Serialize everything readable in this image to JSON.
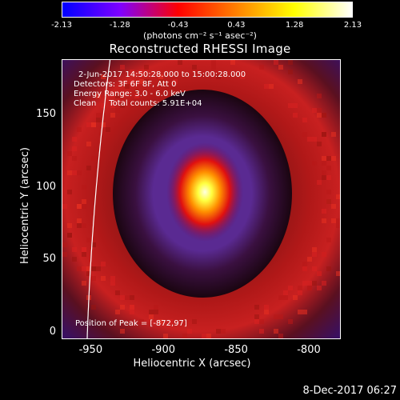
{
  "colorbar": {
    "ticks": [
      "-2.13",
      "-1.28",
      "-0.43",
      "0.43",
      "1.28",
      "2.13"
    ],
    "unit_label": "(photons cm⁻² s⁻¹ asec⁻²)",
    "colors": [
      "#0000ff",
      "#7f00ff",
      "#ff0000",
      "#ff8000",
      "#ffff00",
      "#ffffff"
    ]
  },
  "chart_data": {
    "type": "heatmap",
    "title": "Reconstructed RHESSI Image",
    "xlabel": "Heliocentric X (arcsec)",
    "ylabel": "Heliocentric Y (arcsec)",
    "xlim": [
      -970,
      -778
    ],
    "ylim": [
      -5,
      188
    ],
    "xticks": [
      -950,
      -900,
      -850,
      -800
    ],
    "yticks": [
      0,
      50,
      100,
      150
    ],
    "peak": [
      -872,
      97
    ],
    "annotations": [
      "2-Jun-2017 14:50:28.000 to 15:00:28.000",
      "Detectors: 3F 6F 8F, Att 0",
      "Energy Range: 3.0 - 6.0 keV",
      "Clean     Total counts: 5.91E+04"
    ],
    "peak_label": "Position of Peak = [-872,97]"
  },
  "timestamp": "8-Dec-2017 06:27"
}
